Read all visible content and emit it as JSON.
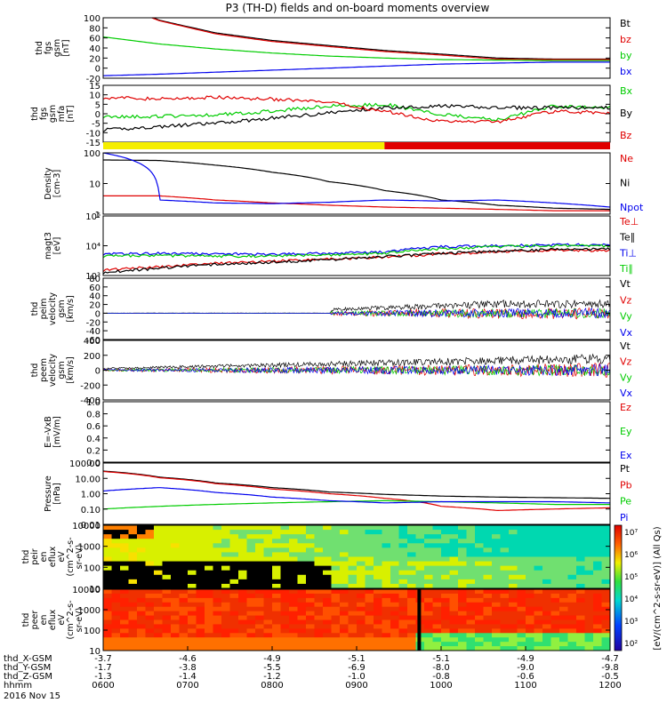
{
  "title": "P3 (TH-D) fields and on-board moments overview",
  "colors": {
    "black": "#000000",
    "red": "#e00000",
    "green": "#00cc00",
    "blue": "#0000ee",
    "yellow": "#f5ee00"
  },
  "chart_data": [
    {
      "id": "fgs_gsm",
      "type": "line",
      "ylabel": [
        "thd",
        "fgs",
        "gsm",
        "[nT]"
      ],
      "ylim": [
        -20,
        100
      ],
      "ticks": [
        "100",
        "80",
        "60",
        "40",
        "20",
        "0",
        "-20"
      ],
      "series": [
        {
          "name": "Bt",
          "color": "black",
          "values": [
            140,
            95,
            70,
            55,
            45,
            35,
            28,
            20,
            18,
            18
          ]
        },
        {
          "name": "bz",
          "color": "red",
          "values": [
            138,
            94,
            68,
            53,
            43,
            33,
            26,
            18,
            17,
            17
          ]
        },
        {
          "name": "by",
          "color": "green",
          "values": [
            62,
            48,
            38,
            30,
            24,
            20,
            17,
            16,
            15,
            15
          ]
        },
        {
          "name": "bx",
          "color": "blue",
          "values": [
            -15,
            -12,
            -8,
            -4,
            0,
            4,
            8,
            10,
            12,
            12
          ]
        }
      ]
    },
    {
      "id": "fgs_gse_mfa",
      "type": "line",
      "ylabel": [
        "thd",
        "fgs",
        "gsm",
        "mfa",
        "[nT]"
      ],
      "ylim": [
        -18,
        15
      ],
      "ticks": [
        "15",
        "10",
        "5",
        "0",
        "-5",
        "-10",
        "-15"
      ],
      "series": [
        {
          "name": "Bx",
          "color": "green",
          "values": [
            -3,
            -3,
            -2,
            0,
            3,
            4,
            -2,
            -5,
            3,
            2
          ]
        },
        {
          "name": "By",
          "color": "black",
          "values": [
            -11,
            -9,
            -7,
            -4,
            -1,
            2,
            3,
            2,
            2,
            2
          ]
        },
        {
          "name": "Bz",
          "color": "red",
          "values": [
            8,
            7,
            8,
            7,
            5,
            0,
            -6,
            -6,
            0,
            -1
          ]
        }
      ]
    },
    {
      "id": "mode_bar",
      "type": "bar",
      "colors": [
        "yellow",
        "red"
      ],
      "switch_fraction": 0.555
    },
    {
      "id": "density",
      "type": "line",
      "ylabel": [
        "Density",
        "[cm-3]"
      ],
      "log": true,
      "ylim": [
        0.5,
        200
      ],
      "ticks": [
        "100",
        "10",
        "1"
      ],
      "series": [
        {
          "name": "Ne",
          "color": "red",
          "values": [
            3,
            3,
            2,
            1.5,
            1.2,
            1,
            0.9,
            0.8,
            0.7,
            0.7
          ]
        },
        {
          "name": "Ni",
          "color": "black",
          "values": [
            100,
            95,
            60,
            30,
            12,
            5,
            2,
            1.2,
            0.9,
            0.8
          ]
        },
        {
          "name": "Npot",
          "color": "blue",
          "values": [
            200,
            2,
            1.5,
            1.4,
            1.6,
            2,
            1.8,
            2,
            1.5,
            1
          ]
        }
      ]
    },
    {
      "id": "temperature",
      "type": "line",
      "ylabel": [
        "magt3",
        "[eV]"
      ],
      "log": true,
      "ylim": [
        300,
        100000
      ],
      "ticks": [
        "10⁵",
        "10⁴",
        "10³"
      ],
      "series": [
        {
          "name": "Te⊥",
          "color": "red",
          "values": [
            500,
            700,
            1000,
            1200,
            1500,
            1800,
            2500,
            3000,
            3500,
            3500
          ]
        },
        {
          "name": "Te∥",
          "color": "black",
          "values": [
            400,
            600,
            900,
            1100,
            1400,
            1900,
            2600,
            3200,
            3800,
            4000
          ]
        },
        {
          "name": "Ti⊥",
          "color": "blue",
          "values": [
            2500,
            2600,
            2500,
            2400,
            2600,
            3000,
            5000,
            5500,
            6000,
            6000
          ]
        },
        {
          "name": "Ti∥",
          "color": "green",
          "values": [
            2000,
            2100,
            2000,
            2000,
            2200,
            2600,
            4200,
            5000,
            5500,
            5500
          ]
        }
      ]
    },
    {
      "id": "peim_velocity",
      "type": "line",
      "ylabel": [
        "thd",
        "peim",
        "velocity",
        "gsm",
        "[km/s]"
      ],
      "ylim": [
        -60,
        80
      ],
      "ticks": [
        "80",
        "60",
        "40",
        "20",
        "0",
        "-20",
        "-40",
        "-60"
      ],
      "series": [
        {
          "name": "Vt",
          "color": "black"
        },
        {
          "name": "Vz",
          "color": "red"
        },
        {
          "name": "Vy",
          "color": "green"
        },
        {
          "name": "Vx",
          "color": "blue"
        }
      ]
    },
    {
      "id": "peem_velocity",
      "type": "line",
      "ylabel": [
        "thd",
        "peem",
        "velocity",
        "gsm",
        "[km/s]"
      ],
      "ylim": [
        -400,
        400
      ],
      "ticks": [
        "400",
        "200",
        "0",
        "-200",
        "-400"
      ],
      "series": [
        {
          "name": "Vt",
          "color": "black"
        },
        {
          "name": "Vz",
          "color": "red"
        },
        {
          "name": "Vy",
          "color": "green"
        },
        {
          "name": "Vx",
          "color": "blue"
        }
      ]
    },
    {
      "id": "efield",
      "type": "line",
      "ylabel": [
        "E=-VxB",
        "[mV/m]"
      ],
      "ylim": [
        0,
        1
      ],
      "ticks": [
        "1.0",
        "0.8",
        "0.6",
        "0.4",
        "0.2",
        "0.0"
      ],
      "series": [
        {
          "name": "Ez",
          "color": "red"
        },
        {
          "name": "Ey",
          "color": "green"
        },
        {
          "name": "Ex",
          "color": "blue"
        }
      ]
    },
    {
      "id": "pressure",
      "type": "line",
      "ylabel": [
        "Pressure",
        "[nPa]"
      ],
      "log": true,
      "ylim": [
        0.01,
        100
      ],
      "ticks": [
        "100.00",
        "10.00",
        "1.00",
        "0.10",
        "0.01"
      ],
      "series": [
        {
          "name": "Pt",
          "color": "black",
          "values": [
            30,
            12,
            5,
            2.5,
            1.3,
            0.9,
            0.7,
            0.6,
            0.55,
            0.5
          ]
        },
        {
          "name": "Pb",
          "color": "red",
          "values": [
            28,
            11,
            4.5,
            2,
            1,
            0.5,
            0.15,
            0.08,
            0.1,
            0.12
          ]
        },
        {
          "name": "Pe",
          "color": "green",
          "values": [
            0.1,
            0.15,
            0.2,
            0.25,
            0.3,
            0.35,
            0.3,
            0.25,
            0.2,
            0.2
          ]
        },
        {
          "name": "Pi",
          "color": "blue",
          "values": [
            1.5,
            2.5,
            1.2,
            0.6,
            0.35,
            0.25,
            0.3,
            0.3,
            0.3,
            0.25
          ]
        }
      ]
    },
    {
      "id": "peir_spec",
      "type": "heatmap",
      "ylabel": [
        "thd",
        "peir",
        "en",
        "eflux",
        "eV",
        "(cm^2-s-",
        "sr-eV)"
      ],
      "log": true,
      "ticks": [
        "10000",
        "1000",
        "100",
        "10"
      ]
    },
    {
      "id": "peer_spec",
      "type": "heatmap",
      "ylabel": [
        "thd",
        "peer",
        "en",
        "eflux",
        "eV",
        "(cm^2-s-",
        "sr-eV)"
      ],
      "log": true,
      "ticks": [
        "10000",
        "1000",
        "100",
        "10"
      ]
    }
  ],
  "colorbar": {
    "ticks": [
      "10⁷",
      "10⁶",
      "10⁵",
      "10⁴",
      "10³",
      "10²"
    ],
    "label": "[eV/(cm^2-s-sr-eV)] (All Qs)"
  },
  "xaxis": {
    "rows": [
      {
        "label": "thd_X-GSM",
        "values": [
          "-3.7",
          "-4.6",
          "-4.9",
          "-5.1",
          "-5.1",
          "-4.9",
          "-4.7"
        ]
      },
      {
        "label": "thd_Y-GSM",
        "values": [
          "-1.7",
          "-3.8",
          "-5.5",
          "-6.9",
          "-8.0",
          "-9.0",
          "-9.8"
        ]
      },
      {
        "label": "thd_Z-GSM",
        "values": [
          "-1.3",
          "-1.4",
          "-1.2",
          "-1.0",
          "-0.8",
          "-0.6",
          "-0.5"
        ]
      },
      {
        "label": "hhmm",
        "values": [
          "0600",
          "0700",
          "0800",
          "0900",
          "1000",
          "1100",
          "1200"
        ]
      }
    ],
    "date": "2016 Nov 15"
  }
}
